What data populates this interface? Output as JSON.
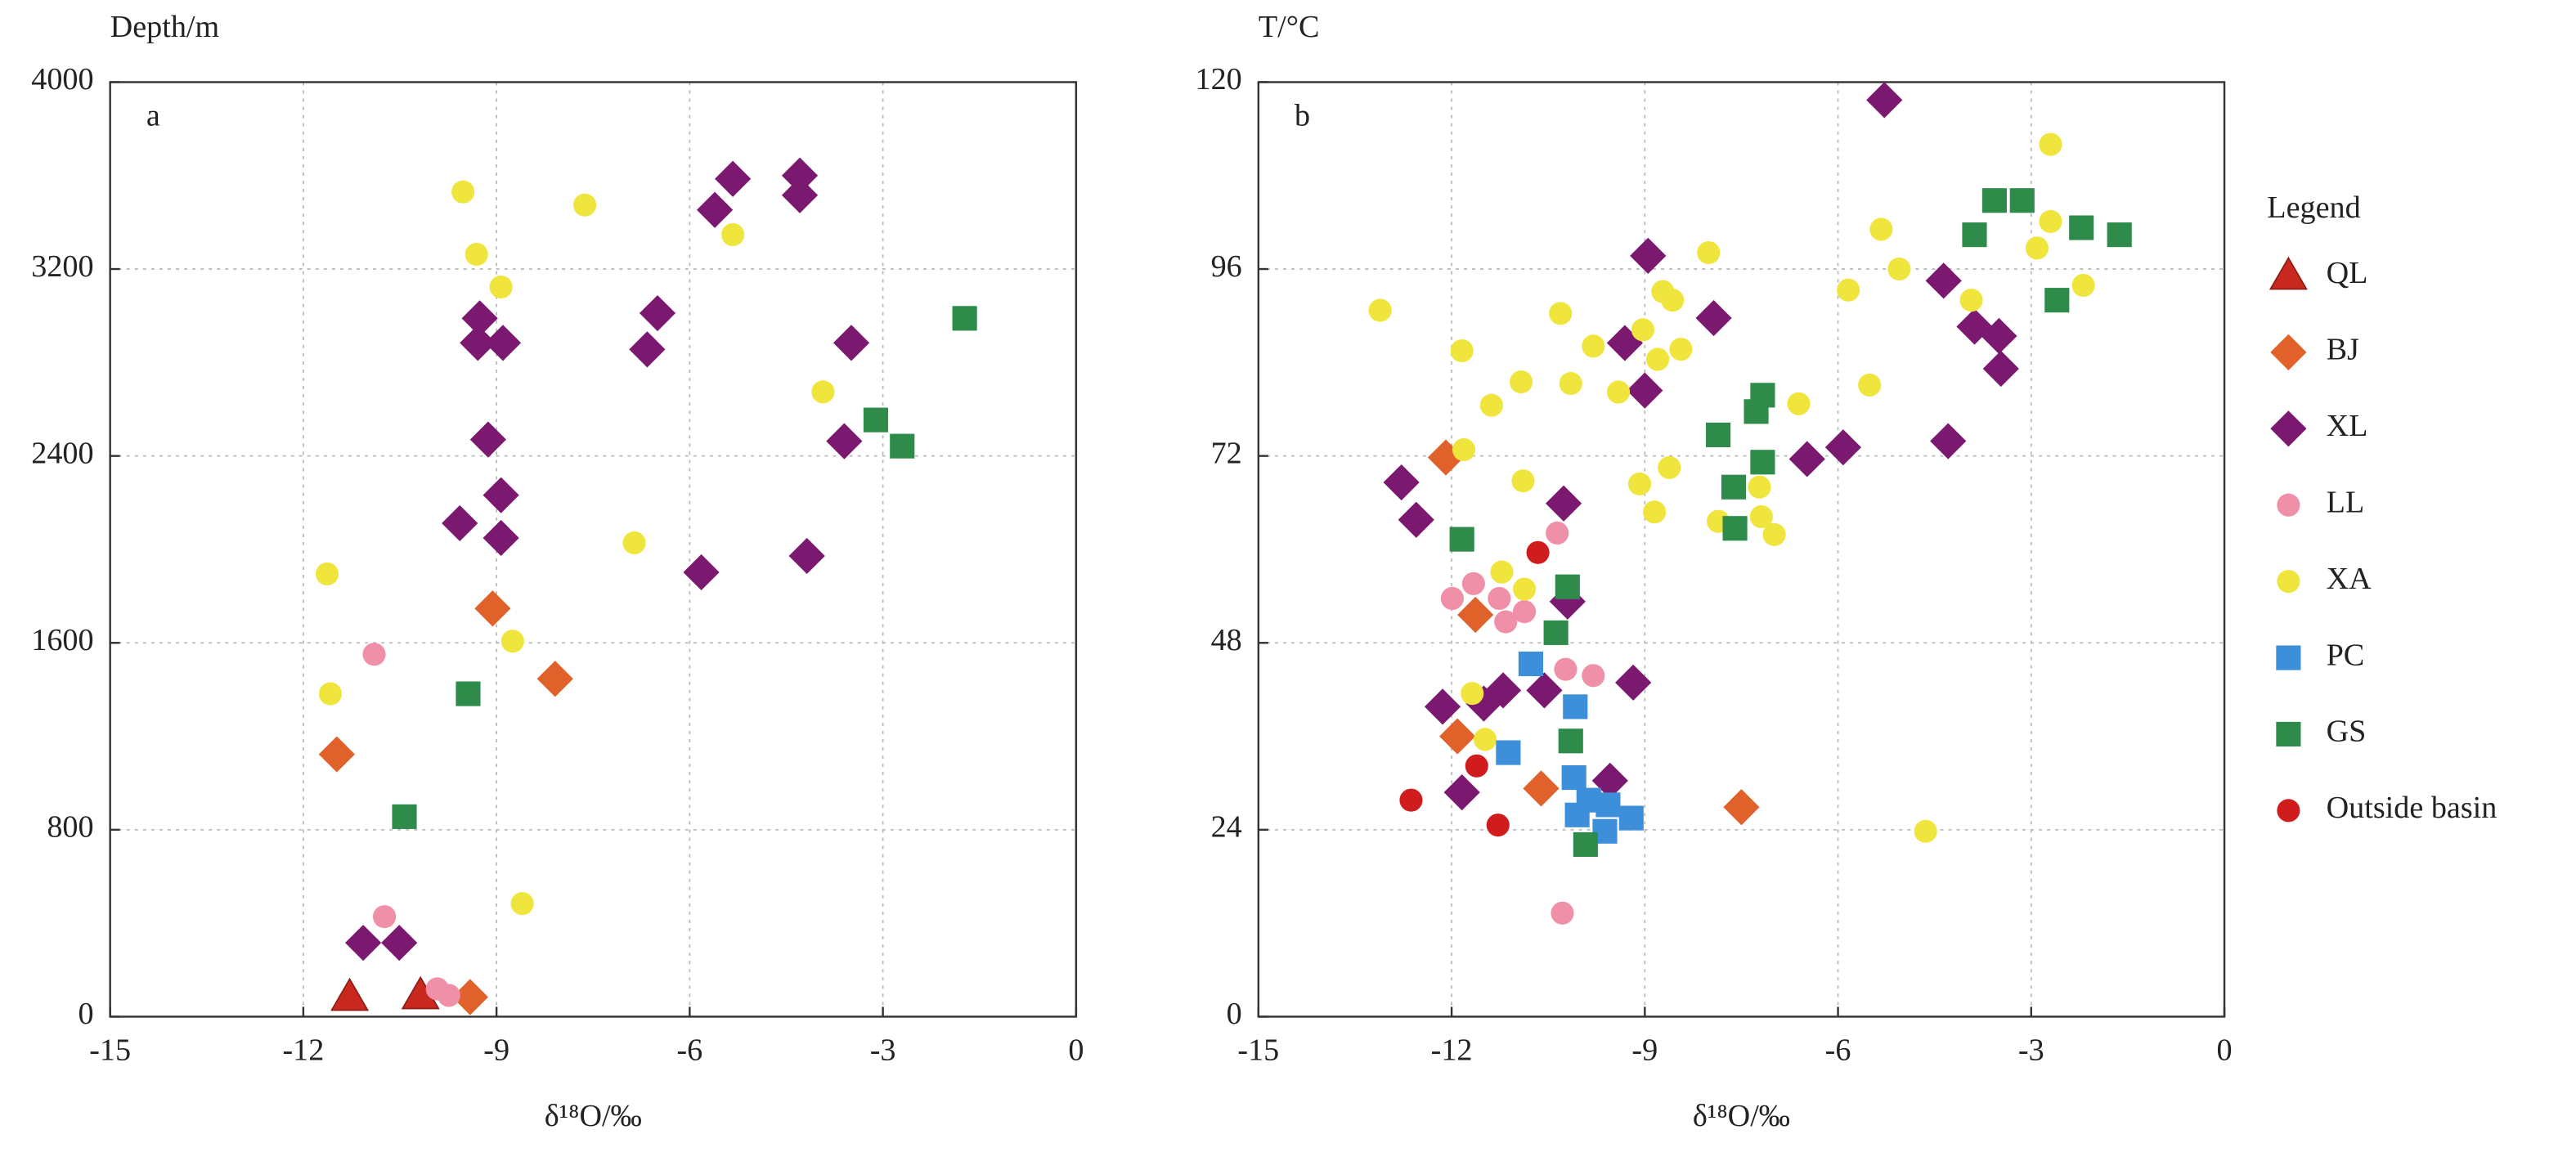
{
  "chart_data": [
    {
      "type": "scatter",
      "ylabel": "Depth/m",
      "xlabel": "δ¹⁸O/‰",
      "annotation": "a",
      "xlim": [
        -15,
        0
      ],
      "ylim": [
        0,
        4000
      ],
      "xticks": [
        -15,
        -12,
        -9,
        -6,
        -3,
        0
      ],
      "yticks": [
        0,
        800,
        1600,
        2400,
        3200,
        4000
      ],
      "grid": true,
      "series": [
        {
          "color": "#c8281e",
          "marker": "triangle",
          "x": [
            -11.28,
            -10.18
          ],
          "y": [
            84,
            91
          ]
        },
        {
          "color": "#e0622a",
          "marker": "diamond",
          "x": [
            -9.41,
            -11.48,
            -9.06,
            -8.09
          ],
          "y": [
            84,
            1123,
            1747,
            1446
          ]
        },
        {
          "color": "#7b1870",
          "marker": "diamond",
          "x": [
            -11.07,
            -10.51,
            -9.26,
            -9.29,
            -8.9,
            -9.57,
            -8.93,
            -8.93,
            -9.13,
            -6.5,
            -6.66,
            -5.61,
            -5.33,
            -4.29,
            -4.29,
            -3.49,
            -3.6,
            -4.18,
            -5.82
          ],
          "y": [
            316,
            316,
            2989,
            2884,
            2884,
            2112,
            2232,
            2049,
            2470,
            3011,
            2856,
            3453,
            3586,
            3600,
            3516,
            2884,
            2463,
            1972,
            1902
          ]
        },
        {
          "color": "#f08fa8",
          "marker": "circle",
          "x": [
            -10.9,
            -10.74,
            -9.92,
            -9.74
          ],
          "y": [
            1551,
            428,
            119,
            91
          ]
        },
        {
          "color": "#f0e53c",
          "marker": "circle",
          "x": [
            -9.52,
            -9.31,
            -8.93,
            -7.63,
            -5.33,
            -3.93,
            -6.86,
            -8.75,
            -11.63,
            -11.58,
            -8.6
          ],
          "y": [
            3530,
            3263,
            3123,
            3474,
            3347,
            2674,
            2028,
            1607,
            1895,
            1382,
            484
          ]
        },
        {
          "color": "#2e8b4a",
          "marker": "square",
          "x": [
            -1.73,
            -3.11,
            -2.7,
            -9.44,
            -10.43
          ],
          "y": [
            2989,
            2554,
            2442,
            1382,
            856
          ]
        }
      ]
    },
    {
      "type": "scatter",
      "ylabel": "T/°C",
      "xlabel": "δ¹⁸O/‰",
      "annotation": "b",
      "xlim": [
        -15,
        0
      ],
      "ylim": [
        0,
        120
      ],
      "xticks": [
        -15,
        -12,
        -9,
        -6,
        -3,
        0
      ],
      "yticks": [
        0,
        24,
        48,
        72,
        96,
        120
      ],
      "grid": true,
      "legend": "right",
      "legend_title": "Legend",
      "series": [
        {
          "name": "QL",
          "color": "#c8281e",
          "marker": "triangle",
          "x": [],
          "y": []
        },
        {
          "name": "BJ",
          "color": "#e0622a",
          "marker": "diamond",
          "x": [
            -12.09,
            -11.63,
            -11.91,
            -10.61,
            -7.5
          ],
          "y": [
            71.8,
            51.6,
            36.0,
            29.3,
            26.9
          ]
        },
        {
          "name": "XL",
          "color": "#7b1870",
          "marker": "diamond",
          "x": [
            -5.28,
            -8.95,
            -4.36,
            -7.93,
            -9.31,
            -9.0,
            -3.88,
            -3.5,
            -3.47,
            -12.78,
            -12.55,
            -10.26,
            -5.92,
            -6.48,
            -4.29,
            -10.2,
            -9.18,
            -10.56,
            -11.2,
            -11.5,
            -12.14,
            -9.54,
            -11.84
          ],
          "y": [
            117.7,
            97.7,
            94.5,
            89.7,
            86.5,
            80.4,
            88.6,
            87.4,
            83.2,
            68.6,
            63.8,
            65.9,
            73.1,
            71.6,
            73.9,
            53.3,
            42.9,
            41.9,
            41.9,
            40.2,
            39.8,
            30.3,
            28.8
          ]
        },
        {
          "name": "LL",
          "color": "#f08fa8",
          "marker": "circle",
          "x": [
            -10.36,
            -11.99,
            -11.66,
            -11.26,
            -11.16,
            -10.87,
            -10.23,
            -9.8,
            -10.28
          ],
          "y": [
            62.1,
            53.7,
            55.6,
            53.7,
            50.7,
            52.0,
            44.6,
            43.8,
            13.3
          ]
        },
        {
          "name": "XA",
          "color": "#f0e53c",
          "marker": "circle",
          "x": [
            -13.11,
            -11.84,
            -10.31,
            -8.72,
            -8.01,
            -5.33,
            -5.05,
            -5.84,
            -2.7,
            -2.7,
            -2.91,
            -3.93,
            -2.19,
            -9.8,
            -9.03,
            -8.44,
            -8.57,
            -11.38,
            -10.92,
            -10.15,
            -9.41,
            -8.8,
            -5.51,
            -6.61,
            -11.81,
            -10.89,
            -9.08,
            -8.62,
            -8.85,
            -7.86,
            -7.19,
            -6.99,
            -7.22,
            -11.22,
            -10.87,
            -11.68,
            -11.48,
            -4.64
          ],
          "y": [
            90.7,
            85.5,
            90.3,
            93.1,
            98.1,
            101.1,
            96.0,
            93.3,
            112.0,
            102.1,
            98.7,
            92.0,
            93.9,
            86.1,
            88.2,
            85.7,
            92.0,
            78.5,
            81.5,
            81.3,
            80.2,
            84.4,
            81.1,
            78.7,
            72.8,
            68.8,
            68.4,
            70.5,
            64.8,
            63.6,
            64.2,
            61.9,
            68.0,
            57.1,
            54.9,
            41.5,
            35.6,
            23.8
          ]
        },
        {
          "name": "PC",
          "color": "#3c8fd8",
          "marker": "square",
          "x": [
            -10.77,
            -10.08,
            -11.12,
            -10.1,
            -9.87,
            -10.05,
            -9.57,
            -9.62,
            -9.21
          ],
          "y": [
            45.3,
            39.8,
            33.9,
            30.7,
            27.8,
            25.9,
            27.2,
            23.8,
            25.5
          ]
        },
        {
          "name": "GS",
          "color": "#2e8b4a",
          "marker": "square",
          "x": [
            -11.84,
            -7.6,
            -7.62,
            -7.86,
            -7.17,
            -7.27,
            -7.17,
            -10.2,
            -10.38,
            -10.15,
            -9.92,
            -3.57,
            -3.88,
            -3.14,
            -2.22,
            -2.6,
            -1.63
          ],
          "y": [
            61.3,
            62.7,
            68.0,
            74.7,
            79.8,
            77.7,
            71.2,
            55.2,
            49.3,
            35.4,
            22.1,
            104.8,
            100.4,
            104.8,
            101.3,
            92.0,
            100.4
          ]
        },
        {
          "name": "Outside basin",
          "color": "#d01c1c",
          "marker": "circle",
          "x": [
            -10.66,
            -11.61,
            -12.63,
            -11.28
          ],
          "y": [
            59.6,
            32.2,
            27.8,
            24.6
          ]
        }
      ]
    }
  ]
}
